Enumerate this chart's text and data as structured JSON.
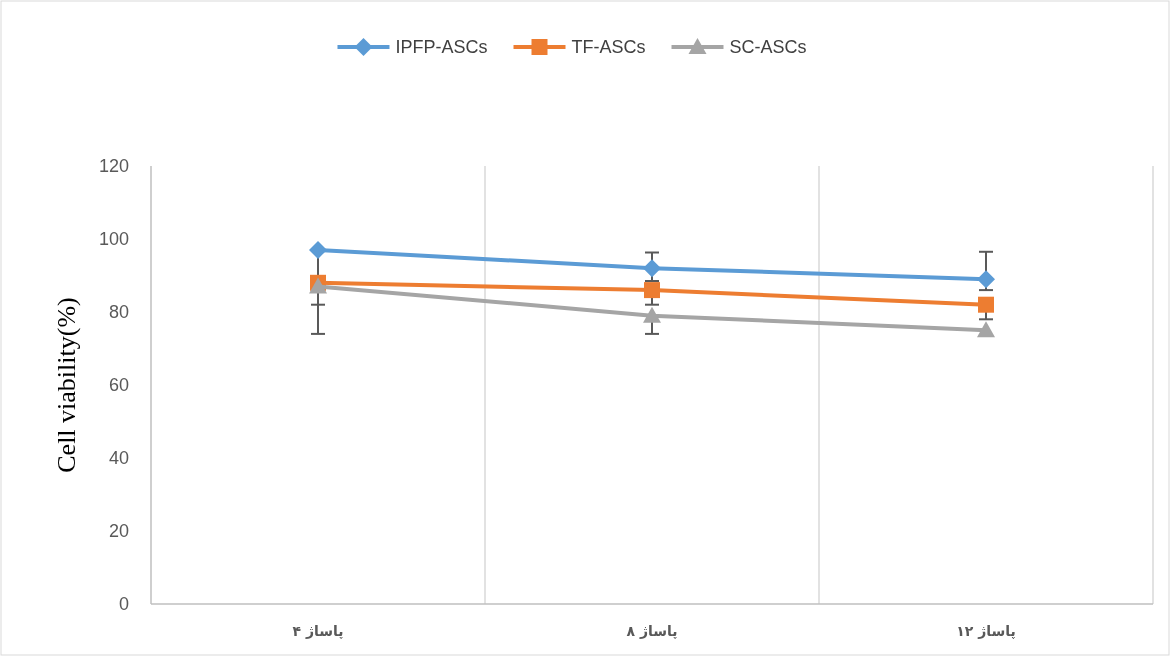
{
  "chart_data": {
    "type": "line",
    "ylabel": "Cell viability(%)",
    "categories": [
      "پاساژ ۴",
      "پاساژ ۸",
      "پاساژ ۱۲"
    ],
    "series": [
      {
        "name": "IPFP-ASCs",
        "color": "#5b9bd5",
        "marker": "diamond",
        "values": [
          97,
          92,
          89
        ],
        "errors": [
          [
            88,
            97
          ],
          [
            88.5,
            96.3
          ],
          [
            86,
            96.5
          ]
        ]
      },
      {
        "name": "TF-ASCs",
        "color": "#ed7d31",
        "marker": "square",
        "values": [
          88,
          86,
          82
        ],
        "errors": [
          [
            82,
            88
          ],
          [
            82,
            86
          ],
          [
            78,
            82
          ]
        ]
      },
      {
        "name": "SC-ASCs",
        "color": "#a5a5a5",
        "marker": "triangle",
        "values": [
          87,
          79,
          75
        ],
        "errors": [
          [
            74,
            87
          ],
          [
            74,
            79
          ],
          null
        ]
      }
    ],
    "ylim": [
      0,
      120
    ],
    "yticks": [
      0,
      20,
      40,
      60,
      80,
      100,
      120
    ],
    "grid": "x",
    "legend": "top"
  }
}
